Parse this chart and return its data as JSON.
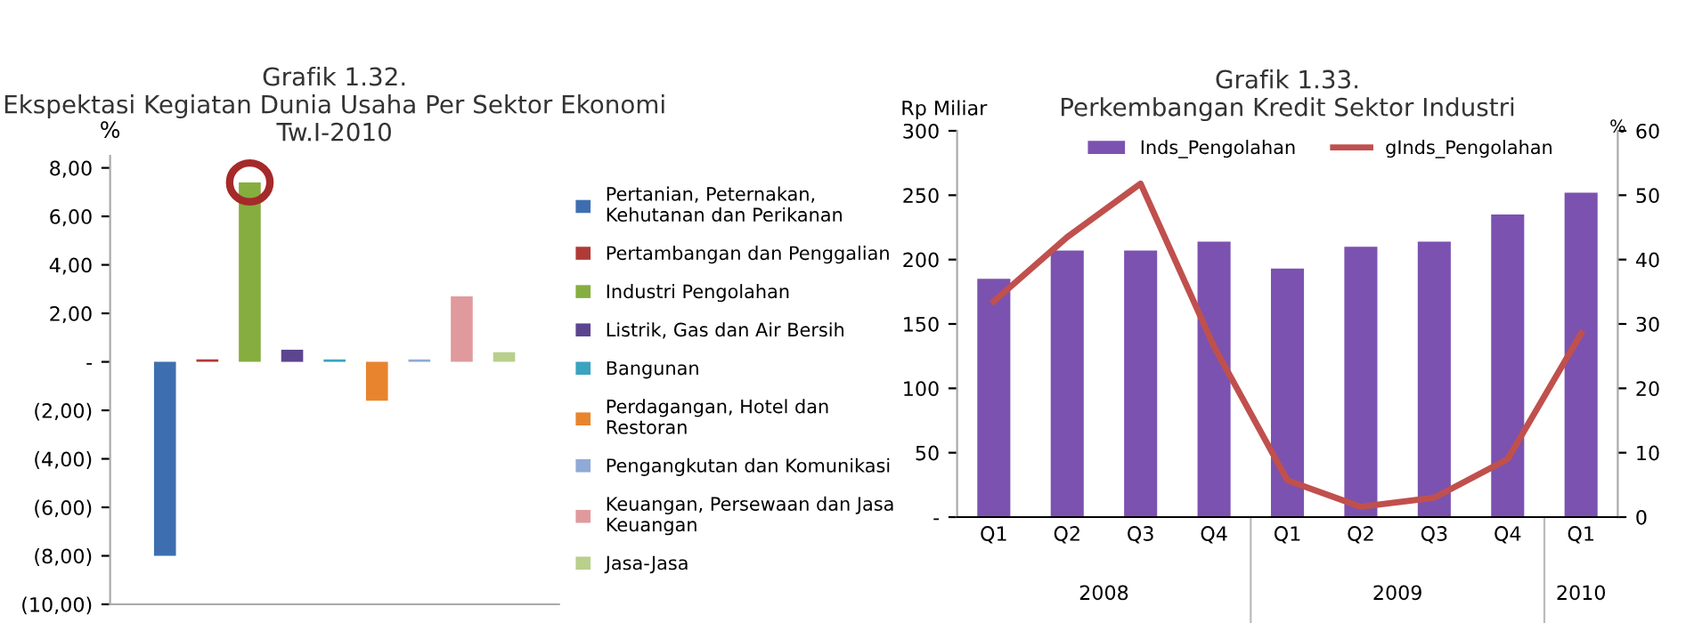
{
  "chart_data": [
    {
      "type": "bar",
      "title": "Grafik 1.32.",
      "subtitle": "Ekspektasi Kegiatan Dunia Usaha Per Sektor Ekonomi\nTw.I-2010",
      "ylabel": "%",
      "categories": [
        null
      ],
      "series": [
        {
          "name": "Pertanian, Peternakan,\nKehutanan dan Perikanan",
          "color": "#3d6fb0",
          "values": [
            -8.0
          ]
        },
        {
          "name": "Pertambangan dan Penggalian",
          "color": "#b03a36",
          "values": [
            0.1
          ]
        },
        {
          "name": "Industri Pengolahan",
          "color": "#86ad3f",
          "values": [
            7.4
          ]
        },
        {
          "name": "Listrik, Gas dan Air Bersih",
          "color": "#5c458f",
          "values": [
            0.5
          ]
        },
        {
          "name": "Bangunan",
          "color": "#3aa3bf",
          "values": [
            0.1
          ]
        },
        {
          "name": "Perdagangan, Hotel dan\nRestoran",
          "color": "#e8842e",
          "values": [
            -1.6
          ]
        },
        {
          "name": "Pengangkutan dan Komunikasi",
          "color": "#8faad6",
          "values": [
            0.1
          ]
        },
        {
          "name": "Keuangan, Persewaan dan Jasa\nKeuangan",
          "color": "#e09a9e",
          "values": [
            2.7
          ]
        },
        {
          "name": "Jasa-Jasa",
          "color": "#b9cf8c",
          "values": [
            0.4
          ]
        }
      ],
      "ylim": [
        -10,
        8.5
      ],
      "yticks": [
        {
          "value": -10,
          "label": "(10,00)"
        },
        {
          "value": -8,
          "label": "(8,00)"
        },
        {
          "value": -6,
          "label": "(6,00)"
        },
        {
          "value": -4,
          "label": "(4,00)"
        },
        {
          "value": -2,
          "label": "(2,00)"
        },
        {
          "value": 0,
          "label": "-"
        },
        {
          "value": 2,
          "label": "2,00"
        },
        {
          "value": 4,
          "label": "4,00"
        },
        {
          "value": 6,
          "label": "6,00"
        },
        {
          "value": 8,
          "label": "8,00"
        }
      ],
      "legend": "right",
      "grid": false,
      "tick_labels": "y"
    },
    {
      "type": "bar",
      "title": "Grafik 1.33.",
      "subtitle": "Perkembangan Kredit Sektor Industri",
      "ylabel": "Rp Miliar",
      "y2label": "%",
      "categories": [
        "Q1",
        "Q2",
        "Q3",
        "Q4",
        "Q1",
        "Q2",
        "Q3",
        "Q4",
        "Q1"
      ],
      "annotations": [
        "2008",
        "2009",
        "2010"
      ],
      "series": [
        {
          "name": "Inds_Pengolahan",
          "color": "#7b52b0",
          "values": [
            185,
            207,
            207,
            214,
            193,
            210,
            214,
            235,
            252
          ]
        },
        {
          "name": "gInds_Pengolahan",
          "type": "line",
          "axis": "y2",
          "color": "#c0504d",
          "values": [
            33.5,
            43.5,
            51.8,
            26.5,
            5.7,
            1.6,
            3,
            9,
            28.5
          ]
        }
      ],
      "ylim": [
        0,
        300
      ],
      "yticks": [
        {
          "value": 0,
          "label": "-"
        },
        50,
        100,
        150,
        200,
        250,
        300
      ],
      "y2lim": [
        0,
        60
      ],
      "y2ticks": [
        0,
        10,
        20,
        30,
        40,
        50,
        60
      ],
      "legend": "top",
      "grid": false,
      "marker": "none",
      "line_style": "solid"
    }
  ]
}
